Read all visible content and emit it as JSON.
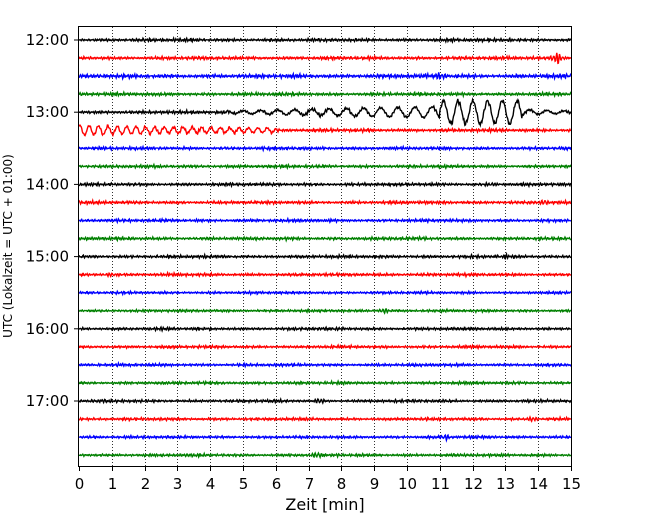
{
  "chart_data": {
    "type": "line",
    "subtype": "helicorder",
    "title": "",
    "xlabel": "Zeit  [min]",
    "ylabel": "UTC (Lokalzeit = UTC + 01:00)",
    "xlim": [
      0,
      15
    ],
    "x_ticks": [
      "0",
      "1",
      "2",
      "3",
      "4",
      "5",
      "6",
      "7",
      "8",
      "9",
      "10",
      "11",
      "12",
      "13",
      "14",
      "15"
    ],
    "y_tick_labels": [
      "12:00",
      "13:00",
      "14:00",
      "15:00",
      "16:00",
      "17:00"
    ],
    "y_tick_trace_index": [
      0,
      4,
      8,
      12,
      16,
      20
    ],
    "grid": "vertical dotted at each minute",
    "color_cycle": [
      "#000000",
      "#ff0000",
      "#0000ff",
      "#008000"
    ],
    "trace_count": 24,
    "trace_interval_min": 15,
    "traces": [
      {
        "start": "12:00",
        "amplitude": 0.15,
        "events": [
          {
            "x": 13.1,
            "amp": 0.25
          }
        ]
      },
      {
        "start": "12:15",
        "amplitude": 0.15,
        "events": [
          {
            "x": 14.6,
            "amp": 0.7
          }
        ]
      },
      {
        "start": "12:30",
        "amplitude": 0.18,
        "events": [
          {
            "x": 11.0,
            "amp": 0.35
          }
        ]
      },
      {
        "start": "12:45",
        "amplitude": 0.15,
        "events": []
      },
      {
        "start": "13:00",
        "amplitude": 0.15,
        "events": [
          {
            "x": 11.0,
            "amp": 1.6,
            "type": "quake",
            "end": 13.5
          }
        ]
      },
      {
        "start": "13:15",
        "amplitude": 0.15,
        "events": [
          {
            "x": 0.0,
            "amp": 0.6,
            "type": "coda",
            "end": 6.0
          }
        ]
      },
      {
        "start": "13:30",
        "amplitude": 0.14,
        "events": []
      },
      {
        "start": "13:45",
        "amplitude": 0.14,
        "events": []
      },
      {
        "start": "14:00",
        "amplitude": 0.14,
        "events": [
          {
            "x": 12.6,
            "amp": 0.25
          }
        ]
      },
      {
        "start": "14:15",
        "amplitude": 0.14,
        "events": [
          {
            "x": 14.2,
            "amp": 0.25
          }
        ]
      },
      {
        "start": "14:30",
        "amplitude": 0.14,
        "events": []
      },
      {
        "start": "14:45",
        "amplitude": 0.14,
        "events": []
      },
      {
        "start": "15:00",
        "amplitude": 0.14,
        "events": [
          {
            "x": 13.0,
            "amp": 0.3
          }
        ]
      },
      {
        "start": "15:15",
        "amplitude": 0.14,
        "events": [
          {
            "x": 1.0,
            "amp": 0.3
          }
        ]
      },
      {
        "start": "15:30",
        "amplitude": 0.12,
        "events": []
      },
      {
        "start": "15:45",
        "amplitude": 0.12,
        "events": [
          {
            "x": 9.3,
            "amp": 0.25
          }
        ]
      },
      {
        "start": "16:00",
        "amplitude": 0.13,
        "events": []
      },
      {
        "start": "16:15",
        "amplitude": 0.13,
        "events": []
      },
      {
        "start": "16:30",
        "amplitude": 0.13,
        "events": []
      },
      {
        "start": "16:45",
        "amplitude": 0.13,
        "events": []
      },
      {
        "start": "17:00",
        "amplitude": 0.13,
        "events": [
          {
            "x": 7.3,
            "amp": 0.25
          }
        ]
      },
      {
        "start": "17:15",
        "amplitude": 0.13,
        "events": [
          {
            "x": 13.8,
            "amp": 0.25
          }
        ]
      },
      {
        "start": "17:30",
        "amplitude": 0.13,
        "events": [
          {
            "x": 11.2,
            "amp": 0.25
          }
        ]
      },
      {
        "start": "17:45",
        "amplitude": 0.13,
        "events": [
          {
            "x": 7.3,
            "amp": 0.3
          }
        ]
      }
    ]
  }
}
